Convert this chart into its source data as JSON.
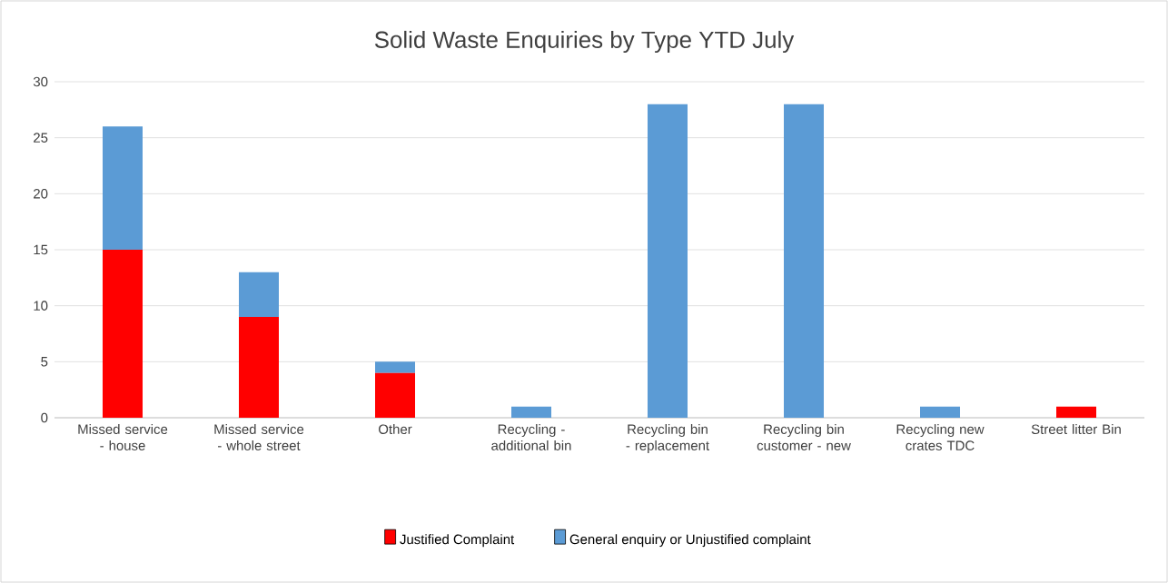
{
  "chart_data": {
    "type": "bar",
    "title": "Solid Waste Enquiries by Type YTD July",
    "categories": [
      "Missed service - house",
      "Missed service - whole street",
      "Other",
      "Recycling - additional bin",
      "Recycling bin - replacement",
      "Recycling bin customer - new",
      "Recycling new crates TDC",
      "Street litter Bin"
    ],
    "series": [
      {
        "name": "Justified Complaint",
        "color": "#ff0000",
        "values": [
          15,
          9,
          4,
          0,
          0,
          0,
          0,
          1
        ]
      },
      {
        "name": "General enquiry or Unjustified complaint",
        "color": "#5b9bd5",
        "values": [
          11,
          4,
          1,
          1,
          28,
          28,
          1,
          0
        ]
      }
    ],
    "stacked": true,
    "ylim": [
      0,
      30
    ],
    "yticks": [
      0,
      5,
      10,
      15,
      20,
      25,
      30
    ],
    "grid": "y",
    "legend": "bottom"
  }
}
